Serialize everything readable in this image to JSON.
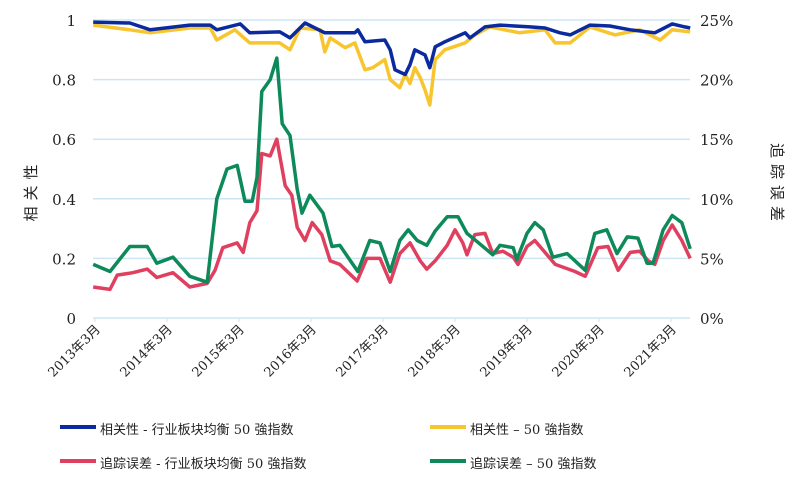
{
  "chart_data": {
    "type": "line",
    "title": "",
    "x_unit": "months since 2013年3月",
    "xlim": [
      0,
      99.3
    ],
    "xticks": [
      0,
      12,
      24,
      36,
      48,
      60,
      72,
      84,
      96
    ],
    "xtick_labels": [
      "2013年3月",
      "2014年3月",
      "2015年3月",
      "2016年3月",
      "2017年3月",
      "2018年3月",
      "2019年3月",
      "2020年3月",
      "2021年3月"
    ],
    "ylabel_left": "相关性",
    "ylim_left": [
      0,
      1
    ],
    "yticks_left": [
      "0",
      "0.2",
      "0.4",
      "0.6",
      "0.8",
      "1"
    ],
    "ylabel_right": "追踪误差",
    "ylim_right": [
      0,
      25
    ],
    "yticks_right": [
      "0%",
      "5%",
      "10%",
      "15%",
      "20%",
      "25%"
    ],
    "grid": true,
    "legend_placement": "bottom",
    "series": [
      {
        "name": "相关性 - 行业板块均衡 50 强指数",
        "axis": "left",
        "color": "#0a2a9e",
        "points": [
          [
            -0.3,
            0.993
          ],
          [
            5.8,
            0.99
          ],
          [
            9.2,
            0.967
          ],
          [
            15.8,
            0.983
          ],
          [
            19.2,
            0.983
          ],
          [
            20.3,
            0.967
          ],
          [
            24.2,
            0.987
          ],
          [
            25.8,
            0.957
          ],
          [
            30.8,
            0.96
          ],
          [
            32.5,
            0.94
          ],
          [
            35,
            0.99
          ],
          [
            38.3,
            0.957
          ],
          [
            43.3,
            0.957
          ],
          [
            43.8,
            0.967
          ],
          [
            45,
            0.927
          ],
          [
            48.3,
            0.933
          ],
          [
            49.2,
            0.9
          ],
          [
            50,
            0.833
          ],
          [
            51.7,
            0.817
          ],
          [
            52.5,
            0.85
          ],
          [
            53.3,
            0.9
          ],
          [
            55,
            0.883
          ],
          [
            55.8,
            0.84
          ],
          [
            56.7,
            0.91
          ],
          [
            58.3,
            0.927
          ],
          [
            61.7,
            0.957
          ],
          [
            62.5,
            0.94
          ],
          [
            65,
            0.977
          ],
          [
            67.5,
            0.983
          ],
          [
            72.5,
            0.977
          ],
          [
            75,
            0.973
          ],
          [
            77.5,
            0.957
          ],
          [
            79.2,
            0.95
          ],
          [
            82.5,
            0.983
          ],
          [
            85.8,
            0.98
          ],
          [
            89.2,
            0.967
          ],
          [
            93.3,
            0.957
          ],
          [
            96.2,
            0.987
          ],
          [
            98.3,
            0.977
          ],
          [
            99.2,
            0.973
          ]
        ]
      },
      {
        "name": "相关性 – 50 強指数",
        "axis": "left",
        "color": "#f7c52e",
        "points": [
          [
            -0.3,
            0.983
          ],
          [
            5.8,
            0.967
          ],
          [
            9.2,
            0.957
          ],
          [
            15.8,
            0.973
          ],
          [
            19.2,
            0.973
          ],
          [
            20.3,
            0.933
          ],
          [
            23.3,
            0.967
          ],
          [
            25.8,
            0.923
          ],
          [
            30.8,
            0.923
          ],
          [
            32.5,
            0.9
          ],
          [
            34.2,
            0.973
          ],
          [
            37.5,
            0.967
          ],
          [
            38.3,
            0.893
          ],
          [
            39.2,
            0.94
          ],
          [
            41.7,
            0.907
          ],
          [
            43.3,
            0.923
          ],
          [
            45,
            0.833
          ],
          [
            46.3,
            0.84
          ],
          [
            48.3,
            0.867
          ],
          [
            49.2,
            0.8
          ],
          [
            50.8,
            0.773
          ],
          [
            51.7,
            0.817
          ],
          [
            52.5,
            0.787
          ],
          [
            53.3,
            0.84
          ],
          [
            54.2,
            0.807
          ],
          [
            55,
            0.765
          ],
          [
            55.8,
            0.715
          ],
          [
            56.7,
            0.867
          ],
          [
            58.3,
            0.9
          ],
          [
            61.7,
            0.923
          ],
          [
            63.3,
            0.95
          ],
          [
            65.8,
            0.977
          ],
          [
            70.8,
            0.957
          ],
          [
            75,
            0.967
          ],
          [
            76.7,
            0.923
          ],
          [
            79.2,
            0.923
          ],
          [
            82.5,
            0.977
          ],
          [
            86.7,
            0.95
          ],
          [
            90.8,
            0.967
          ],
          [
            94.2,
            0.933
          ],
          [
            96.2,
            0.967
          ],
          [
            99.2,
            0.96
          ]
        ]
      },
      {
        "name": "追踪误差 - 行业板块均衡 50 強指数",
        "axis": "right",
        "color": "#e0405f",
        "points": [
          [
            -0.3,
            2.6
          ],
          [
            2.5,
            2.4
          ],
          [
            3.7,
            3.6
          ],
          [
            6.3,
            3.8
          ],
          [
            8.7,
            4.1
          ],
          [
            10.3,
            3.4
          ],
          [
            13,
            3.8
          ],
          [
            15.8,
            2.6
          ],
          [
            18.7,
            2.9
          ],
          [
            20,
            4
          ],
          [
            21.3,
            5.9
          ],
          [
            23.7,
            6.3
          ],
          [
            24.7,
            5.5
          ],
          [
            25.8,
            8
          ],
          [
            27,
            9
          ],
          [
            27.8,
            13.8
          ],
          [
            29.2,
            13.6
          ],
          [
            30.3,
            15
          ],
          [
            31.7,
            11.1
          ],
          [
            32.8,
            10.3
          ],
          [
            33.7,
            7.6
          ],
          [
            35,
            6.5
          ],
          [
            36.2,
            8
          ],
          [
            37.8,
            7
          ],
          [
            39.2,
            4.8
          ],
          [
            40.8,
            4.5
          ],
          [
            43.7,
            3.1
          ],
          [
            45.3,
            5
          ],
          [
            47.5,
            5
          ],
          [
            49.2,
            3
          ],
          [
            50.8,
            5.4
          ],
          [
            52.5,
            6.3
          ],
          [
            54.2,
            4.8
          ],
          [
            55.3,
            4.1
          ],
          [
            56.7,
            4.8
          ],
          [
            58.7,
            6.1
          ],
          [
            60,
            7.4
          ],
          [
            61.3,
            6.3
          ],
          [
            62,
            5.3
          ],
          [
            63.3,
            7
          ],
          [
            65,
            7.1
          ],
          [
            66.3,
            5.4
          ],
          [
            68,
            5.6
          ],
          [
            69.7,
            5.1
          ],
          [
            70.5,
            4.5
          ],
          [
            72,
            6
          ],
          [
            73.3,
            6.5
          ],
          [
            75,
            5.5
          ],
          [
            76.7,
            4.5
          ],
          [
            80,
            3.9
          ],
          [
            81.7,
            3.5
          ],
          [
            83.8,
            5.9
          ],
          [
            85.5,
            6
          ],
          [
            87.2,
            4
          ],
          [
            89.2,
            5.5
          ],
          [
            90.8,
            5.6
          ],
          [
            92.2,
            4.8
          ],
          [
            93.3,
            4.5
          ],
          [
            94.7,
            6.5
          ],
          [
            96.2,
            7.8
          ],
          [
            97.8,
            6.5
          ],
          [
            99.2,
            5
          ]
        ]
      },
      {
        "name": "追踪误差 – 50 強指数",
        "axis": "right",
        "color": "#0e8a5a",
        "points": [
          [
            -0.3,
            4.5
          ],
          [
            2.5,
            3.9
          ],
          [
            5.8,
            6
          ],
          [
            8.7,
            6
          ],
          [
            10.3,
            4.6
          ],
          [
            13,
            5.1
          ],
          [
            15.8,
            3.5
          ],
          [
            18.7,
            3
          ],
          [
            20.3,
            10
          ],
          [
            22,
            12.5
          ],
          [
            23.7,
            12.8
          ],
          [
            25,
            9.8
          ],
          [
            26.2,
            9.8
          ],
          [
            27,
            11.8
          ],
          [
            27.8,
            19
          ],
          [
            29.2,
            20
          ],
          [
            30.3,
            21.8
          ],
          [
            31.2,
            16.3
          ],
          [
            32.5,
            15.3
          ],
          [
            33.7,
            10.8
          ],
          [
            34.5,
            8.8
          ],
          [
            35.8,
            10.3
          ],
          [
            38,
            8.8
          ],
          [
            39.5,
            6
          ],
          [
            40.8,
            6.1
          ],
          [
            43.8,
            3.9
          ],
          [
            45.8,
            6.5
          ],
          [
            47.5,
            6.3
          ],
          [
            49.2,
            3.9
          ],
          [
            50.8,
            6.5
          ],
          [
            52.2,
            7.4
          ],
          [
            53.7,
            6.5
          ],
          [
            55.3,
            6.1
          ],
          [
            56.7,
            7.3
          ],
          [
            58.7,
            8.5
          ],
          [
            60.5,
            8.5
          ],
          [
            62,
            7.1
          ],
          [
            63.7,
            6.4
          ],
          [
            66.3,
            5.3
          ],
          [
            67.5,
            6.1
          ],
          [
            69.7,
            5.9
          ],
          [
            70.3,
            4.9
          ],
          [
            72,
            7.1
          ],
          [
            73.3,
            8
          ],
          [
            74.7,
            7.4
          ],
          [
            76.3,
            5.1
          ],
          [
            78.7,
            5.4
          ],
          [
            81.7,
            4
          ],
          [
            83.3,
            7.1
          ],
          [
            85.3,
            7.4
          ],
          [
            87,
            5.4
          ],
          [
            88.7,
            6.8
          ],
          [
            90.5,
            6.7
          ],
          [
            92,
            4.6
          ],
          [
            93,
            4.6
          ],
          [
            94.7,
            7.4
          ],
          [
            96.2,
            8.6
          ],
          [
            97.8,
            8
          ],
          [
            99.2,
            5.8
          ]
        ]
      }
    ],
    "legend": [
      "相关性 - 行业板块均衡 50 強指数",
      "相关性 – 50 強指数",
      "追踪误差 - 行业板块均衡 50 強指数",
      "追踪误差 – 50 強指数"
    ]
  }
}
